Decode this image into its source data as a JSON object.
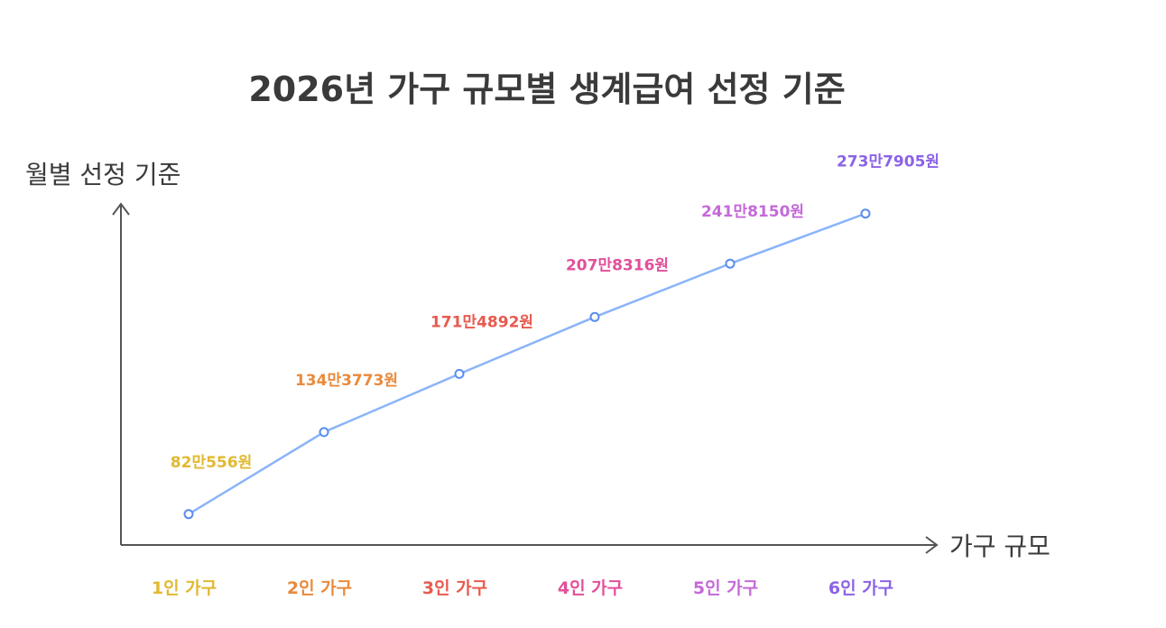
{
  "chart_data": {
    "type": "line",
    "title": "2026년 가구 규모별 생계급여 선정 기준",
    "ylabel": "월별 선정 기준",
    "xlabel": "가구 규모",
    "categories": [
      "1인 가구",
      "2인 가구",
      "3인 가구",
      "4인 가구",
      "5인 가구",
      "6인 가구"
    ],
    "values": [
      820556,
      1343773,
      1714892,
      2078316,
      2418150,
      2737905
    ],
    "data_labels": [
      "82만556원",
      "134만3773원",
      "171만4892원",
      "207만8316원",
      "241만8150원",
      "273만7905원"
    ],
    "category_colors": [
      "#e1b931",
      "#e98a3c",
      "#e85a4f",
      "#e2509a",
      "#c46ad8",
      "#8b63e6"
    ],
    "line_color": "#8ab4f8",
    "marker_color": "#5a8def",
    "axis_color": "#555555",
    "grid": false,
    "ylim": [
      500000,
      2900000
    ]
  }
}
